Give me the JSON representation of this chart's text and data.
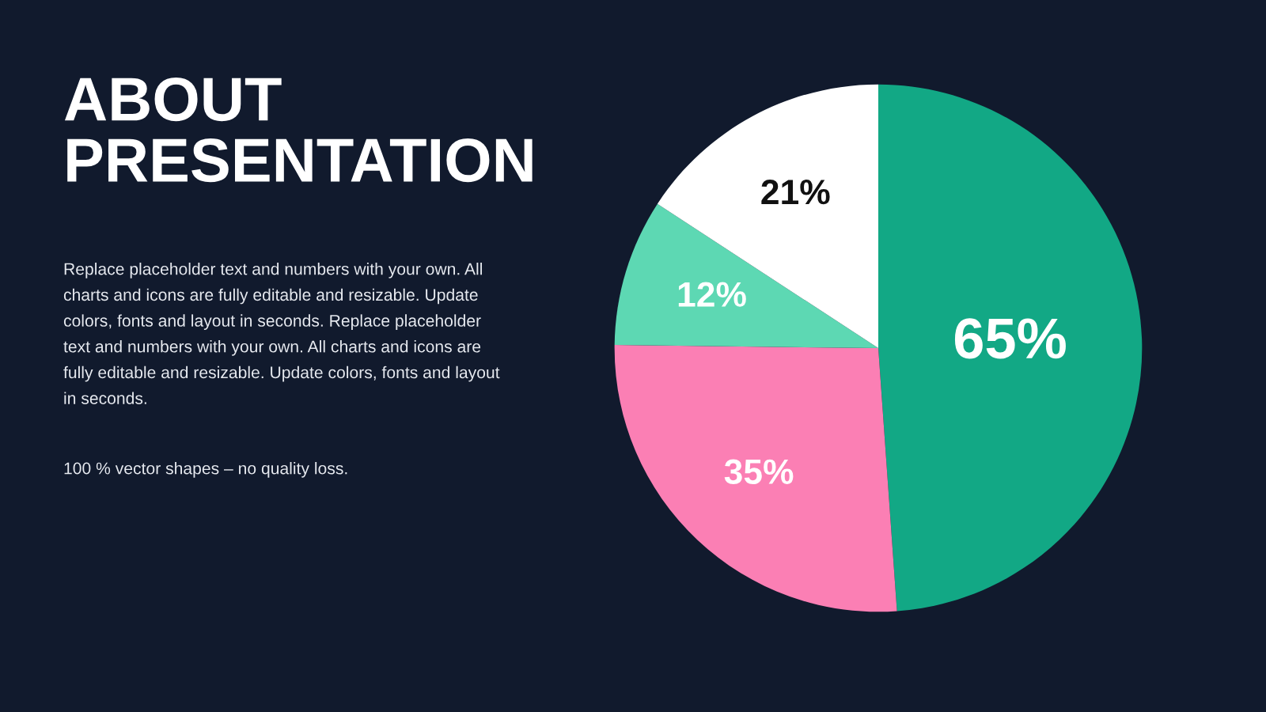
{
  "chart_data": {
    "type": "pie",
    "title": "ABOUT\nPRESENTATION",
    "categories": [
      null,
      null,
      null,
      null
    ],
    "values": [
      65,
      35,
      12,
      21
    ],
    "colors": [
      "#12a885",
      "#fb7fb4",
      "#5dd8b3",
      "#ffffff"
    ],
    "value_labels": [
      "65%",
      "35%",
      "12%",
      "21%"
    ],
    "annotations": [
      "Replace placeholder text and numbers with your own. All\ncharts and icons are fully editable and resizable. Update\ncolors, fonts and layout in seconds. Replace placeholder\ntext and numbers with your own. All charts and icons are\nfully editable and resizable. Update colors, fonts and layout\nin seconds.",
      "100 % vector shapes – no quality loss."
    ]
  }
}
